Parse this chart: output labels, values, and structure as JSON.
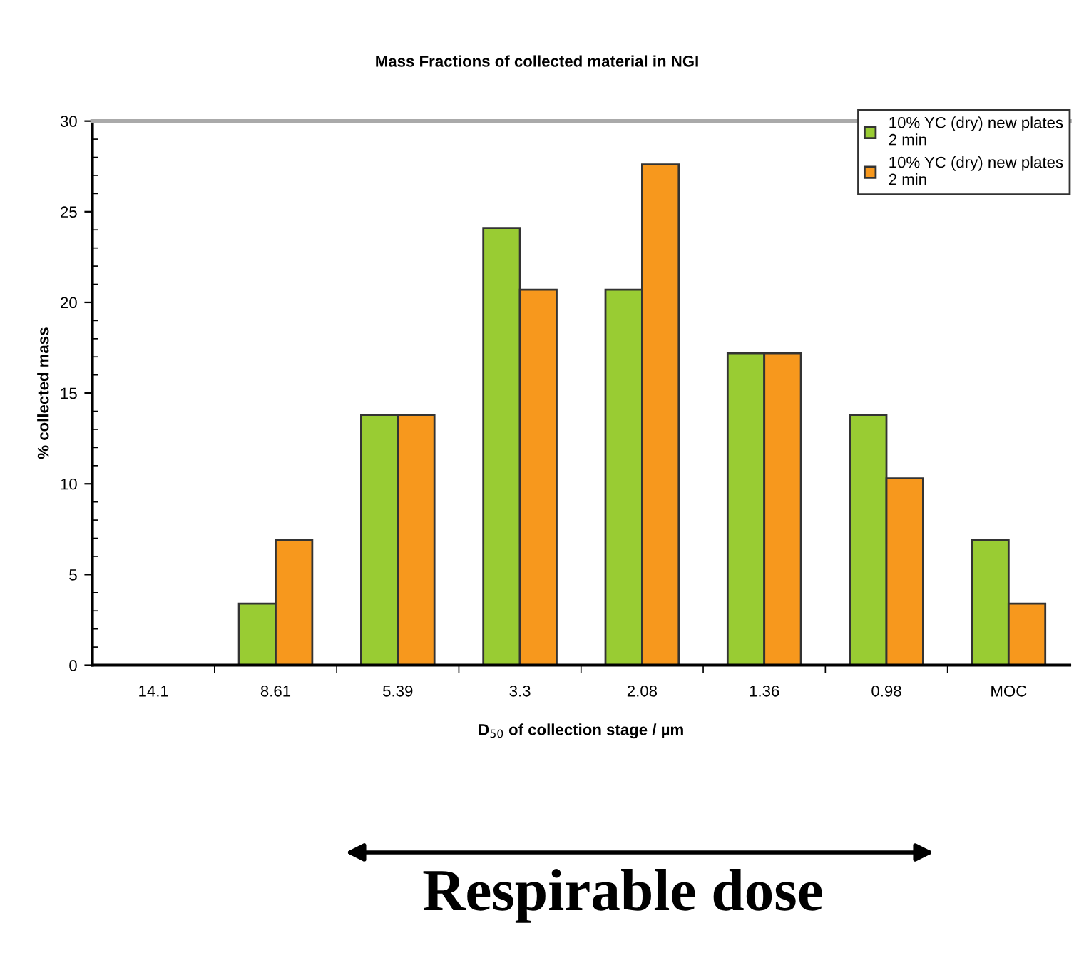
{
  "chart_data": {
    "type": "bar",
    "title": "Mass Fractions of collected material in NGI",
    "xlabel": "D$_{50}$ of collection stage / µm",
    "ylabel": "% collected mass",
    "categories": [
      "14.1",
      "8.61",
      "5.39",
      "3.3",
      "2.08",
      "1.36",
      "0.98",
      "MOC"
    ],
    "series": [
      {
        "name": "10% YC (dry) new plates\n2 min",
        "color": "#99cc33",
        "values": [
          null,
          3.4,
          13.8,
          24.1,
          20.7,
          17.2,
          13.8,
          6.9
        ]
      },
      {
        "name": "10% YC (dry) new plates\n2 min",
        "color": "#f7981d",
        "values": [
          null,
          6.9,
          13.8,
          20.7,
          27.6,
          17.2,
          10.3,
          3.4
        ]
      }
    ],
    "ylim": [
      0,
      30
    ],
    "yticks": [
      0,
      5,
      10,
      15,
      20,
      25,
      30
    ],
    "grid": false,
    "legend": "top right",
    "annotations": [
      "Respirable dose"
    ]
  }
}
